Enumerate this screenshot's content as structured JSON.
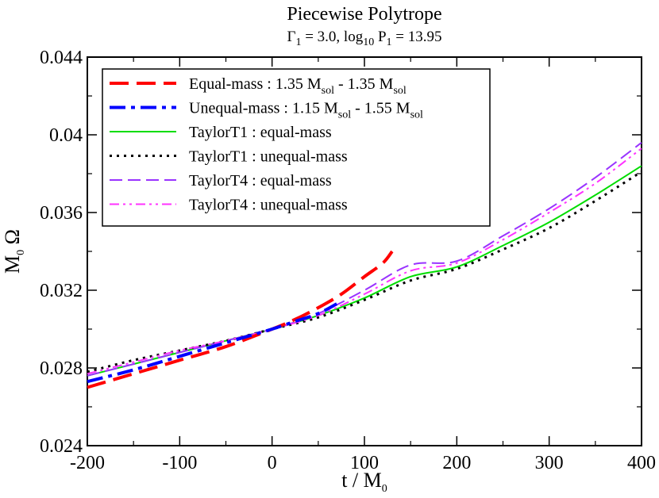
{
  "chart_data": {
    "type": "line",
    "title": "Piecewise Polytrope",
    "subtitle": {
      "gamma_symbol": "Γ",
      "gamma_sub": "1",
      "gamma_value": " = 3.0,  log",
      "log_sub": "10",
      "p_symbol": " P",
      "p_sub": "1",
      "p_value": " = 13.95"
    },
    "xlabel": {
      "main": "t / M",
      "sub": "0"
    },
    "ylabel": {
      "main": "M",
      "sub": "0",
      "tail": " Ω"
    },
    "xlim": [
      -200,
      400
    ],
    "ylim": [
      0.024,
      0.044
    ],
    "xticks": [
      -200,
      -100,
      0,
      100,
      200,
      300,
      400
    ],
    "xtick_labels": [
      "-200",
      "-100",
      "0",
      "100",
      "200",
      "300",
      "400"
    ],
    "yticks": [
      0.024,
      0.028,
      0.032,
      0.036,
      0.04,
      0.044
    ],
    "ytick_labels": [
      "0.024",
      "0.028",
      "0.032",
      "0.036",
      "0.04",
      "0.044"
    ],
    "legend_position": "top-left",
    "series": [
      {
        "id": "equal-mass",
        "legend": {
          "a": "Equal-mass :      1.35 M",
          "a_sub": "sol",
          "b": " - 1.35 M",
          "b_sub": "sol"
        },
        "color": "#ff0000",
        "style": "long-dash",
        "width": 4,
        "x": [
          -200,
          -150,
          -100,
          -50,
          0,
          25,
          50,
          75,
          100,
          120,
          130
        ],
        "y": [
          0.027,
          0.0277,
          0.0284,
          0.0291,
          0.03,
          0.0305,
          0.0311,
          0.0318,
          0.0327,
          0.0334,
          0.034
        ]
      },
      {
        "id": "unequal-mass",
        "legend": {
          "a": "Unequal-mass : 1.15 M",
          "a_sub": "sol",
          "b": " - 1.55 M",
          "b_sub": "sol"
        },
        "color": "#0000ff",
        "style": "dash-dot",
        "width": 4,
        "x": [
          -200,
          -150,
          -100,
          -50,
          0,
          25,
          50,
          70
        ],
        "y": [
          0.0273,
          0.0279,
          0.0286,
          0.0293,
          0.03,
          0.0304,
          0.0308,
          0.0313
        ]
      },
      {
        "id": "taylort1-equal",
        "legend": {
          "a": "TaylorT1 : equal-mass"
        },
        "color": "#00dd00",
        "style": "solid",
        "width": 2,
        "x": [
          -200,
          -150,
          -100,
          -50,
          0,
          50,
          100,
          150,
          200,
          250,
          300,
          350,
          400
        ],
        "y": [
          0.0276,
          0.0282,
          0.0288,
          0.0294,
          0.03,
          0.0307,
          0.0316,
          0.0327,
          0.0332,
          0.0343,
          0.0355,
          0.0369,
          0.0384
        ]
      },
      {
        "id": "taylort1-unequal",
        "legend": {
          "a": "TaylorT1 : unequal-mass"
        },
        "color": "#000000",
        "style": "dotted",
        "width": 3,
        "x": [
          -200,
          -150,
          -100,
          -50,
          0,
          50,
          100,
          150,
          200,
          250,
          300,
          350,
          400
        ],
        "y": [
          0.0278,
          0.0284,
          0.0289,
          0.0294,
          0.03,
          0.0306,
          0.0315,
          0.0325,
          0.0331,
          0.0341,
          0.0352,
          0.0366,
          0.0381
        ]
      },
      {
        "id": "taylort4-equal",
        "legend": {
          "a": "TaylorT4 : equal-mass"
        },
        "color": "#9933ff",
        "style": "dash",
        "width": 2,
        "x": [
          -200,
          -150,
          -100,
          -50,
          0,
          50,
          100,
          150,
          200,
          250,
          300,
          350,
          400
        ],
        "y": [
          0.0276,
          0.0282,
          0.0288,
          0.0294,
          0.03,
          0.0308,
          0.032,
          0.0333,
          0.0335,
          0.0348,
          0.0362,
          0.0378,
          0.0396
        ]
      },
      {
        "id": "taylort4-unequal",
        "legend": {
          "a": "TaylorT4 : unequal-mass"
        },
        "color": "#ff33ff",
        "style": "dash-dot-dot",
        "width": 2,
        "x": [
          -200,
          -150,
          -100,
          -50,
          0,
          50,
          100,
          150,
          200,
          250,
          300,
          350,
          400
        ],
        "y": [
          0.0277,
          0.0283,
          0.0289,
          0.0294,
          0.03,
          0.0307,
          0.0318,
          0.033,
          0.0334,
          0.0346,
          0.036,
          0.0375,
          0.0393
        ]
      }
    ]
  }
}
